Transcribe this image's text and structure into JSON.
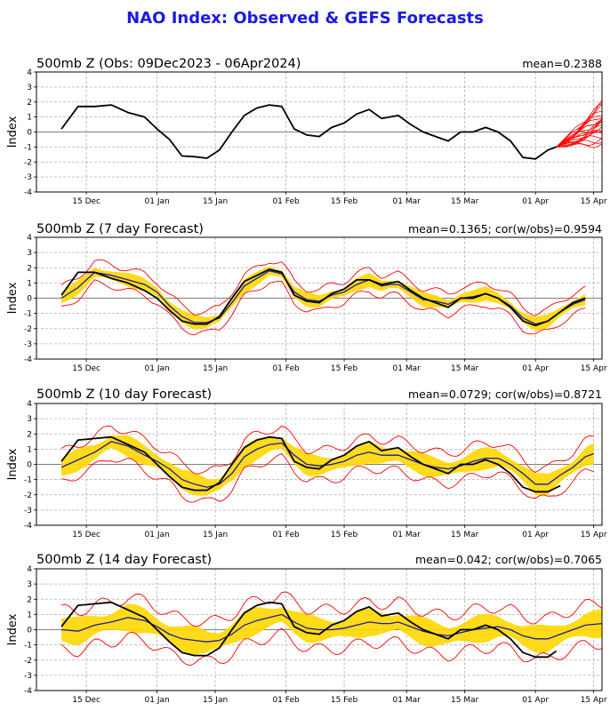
{
  "title": "NAO Index: Observed & GEFS Forecasts",
  "chart_data": [
    {
      "type": "line",
      "title": "500mb Z (Obs: 09Dec2023 - 06Apr2024)",
      "stat": "mean=0.2388",
      "ylabel": "Index",
      "ylim": [
        -4,
        4
      ],
      "yticks": [
        -4,
        -3,
        -2,
        -1,
        0,
        1,
        2,
        3,
        4
      ],
      "xlim": [
        -6,
        130
      ],
      "xticks": [
        {
          "day": 6,
          "label": "15 Dec"
        },
        {
          "day": 23,
          "label": "01 Jan"
        },
        {
          "day": 37,
          "label": "15 Jan"
        },
        {
          "day": 54,
          "label": "01 Feb"
        },
        {
          "day": 68,
          "label": "15 Feb"
        },
        {
          "day": 83,
          "label": "01 Mar"
        },
        {
          "day": 97,
          "label": "15 Mar"
        },
        {
          "day": 114,
          "label": "01 Apr"
        },
        {
          "day": 128,
          "label": "15 Apr"
        }
      ],
      "grid": true,
      "observed": {
        "day": [
          0,
          4,
          8,
          12,
          16,
          20,
          23,
          26,
          29,
          32,
          35,
          38,
          41,
          44,
          47,
          50,
          53,
          56,
          59,
          62,
          65,
          68,
          71,
          74,
          77,
          79,
          81,
          84,
          87,
          90,
          93,
          96,
          99,
          102,
          105,
          108,
          111,
          114,
          117,
          119
        ],
        "value": [
          0.2,
          1.7,
          1.7,
          1.8,
          1.3,
          1.0,
          0.2,
          -0.5,
          -1.6,
          -1.65,
          -1.75,
          -1.2,
          0.0,
          1.1,
          1.6,
          1.8,
          1.7,
          0.2,
          -0.2,
          -0.3,
          0.3,
          0.6,
          1.2,
          1.5,
          0.9,
          1.0,
          1.1,
          0.5,
          0.0,
          -0.3,
          -0.6,
          0.0,
          0.0,
          0.3,
          0.0,
          -0.6,
          -1.7,
          -1.8,
          -1.2,
          -1.0
        ]
      },
      "ensemble": {
        "start_day": 119,
        "start_value": -1.0,
        "end_day": 130,
        "end_values": [
          1.8,
          1.5,
          1.2,
          1.0,
          0.8,
          0.5,
          0.3,
          0.1,
          -0.2,
          -0.5,
          -0.8,
          1.9,
          0.6,
          -0.1,
          1.3,
          0.9,
          0.4,
          -0.6,
          1.6,
          0.0
        ]
      }
    },
    {
      "type": "line",
      "title": "500mb Z (7 day Forecast)",
      "stat": "mean=0.1365; cor(w/obs)=0.9594",
      "ylabel": "Index",
      "ylim": [
        -4,
        4
      ],
      "yticks": [
        -4,
        -3,
        -2,
        -1,
        0,
        1,
        2,
        3,
        4
      ],
      "xlim": [
        -6,
        130
      ],
      "xticks": [
        {
          "day": 6,
          "label": "15 Dec"
        },
        {
          "day": 23,
          "label": "01 Jan"
        },
        {
          "day": 37,
          "label": "15 Jan"
        },
        {
          "day": 54,
          "label": "01 Feb"
        },
        {
          "day": 68,
          "label": "15 Feb"
        },
        {
          "day": 83,
          "label": "01 Mar"
        },
        {
          "day": 97,
          "label": "15 Mar"
        },
        {
          "day": 114,
          "label": "01 Apr"
        },
        {
          "day": 128,
          "label": "15 Apr"
        }
      ],
      "grid": true,
      "observed": {
        "day": [
          0,
          4,
          8,
          12,
          16,
          20,
          23,
          26,
          29,
          32,
          35,
          38,
          41,
          44,
          47,
          50,
          53,
          56,
          59,
          62,
          65,
          68,
          71,
          74,
          77,
          79,
          81,
          84,
          87,
          90,
          93,
          96,
          99,
          102,
          105,
          108,
          111,
          114,
          117,
          120,
          123,
          126
        ],
        "value": [
          0.2,
          1.7,
          1.7,
          1.3,
          1.0,
          0.5,
          0.0,
          -0.8,
          -1.5,
          -1.7,
          -1.7,
          -1.2,
          0.0,
          1.1,
          1.5,
          1.9,
          1.7,
          0.2,
          -0.2,
          -0.3,
          0.3,
          0.6,
          1.2,
          1.2,
          0.9,
          1.0,
          1.1,
          0.5,
          0.0,
          -0.3,
          -0.6,
          0.0,
          0.0,
          0.3,
          0.0,
          -0.6,
          -1.5,
          -1.8,
          -1.5,
          -0.9,
          -0.3,
          0.0
        ]
      },
      "forecast_mean": {
        "day": [
          0,
          4,
          8,
          12,
          16,
          20,
          23,
          26,
          29,
          32,
          35,
          38,
          41,
          44,
          47,
          50,
          53,
          56,
          59,
          62,
          65,
          68,
          71,
          74,
          77,
          79,
          81,
          84,
          87,
          90,
          93,
          96,
          99,
          102,
          105,
          108,
          111,
          114,
          117,
          120,
          123,
          126
        ],
        "value": [
          0.0,
          0.7,
          1.7,
          1.5,
          1.2,
          0.9,
          0.4,
          -0.5,
          -1.2,
          -1.6,
          -1.6,
          -1.3,
          -0.3,
          0.8,
          1.3,
          1.8,
          1.6,
          0.4,
          -0.1,
          -0.2,
          0.2,
          0.4,
          0.9,
          1.2,
          0.8,
          0.9,
          0.9,
          0.4,
          -0.1,
          -0.2,
          -0.4,
          0.0,
          0.1,
          0.3,
          0.0,
          -0.5,
          -1.3,
          -1.7,
          -1.5,
          -0.9,
          -0.4,
          -0.1
        ]
      },
      "band_halfwidth": 0.35,
      "envelope_halfwidth": 0.7
    },
    {
      "type": "line",
      "title": "500mb Z (10 day Forecast)",
      "stat": "mean=0.0729; cor(w/obs)=0.8721",
      "ylabel": "Index",
      "ylim": [
        -4,
        4
      ],
      "yticks": [
        -4,
        -3,
        -2,
        -1,
        0,
        1,
        2,
        3,
        4
      ],
      "xlim": [
        -6,
        130
      ],
      "xticks": [
        {
          "day": 6,
          "label": "15 Dec"
        },
        {
          "day": 23,
          "label": "01 Jan"
        },
        {
          "day": 37,
          "label": "15 Jan"
        },
        {
          "day": 54,
          "label": "01 Feb"
        },
        {
          "day": 68,
          "label": "15 Feb"
        },
        {
          "day": 83,
          "label": "01 Mar"
        },
        {
          "day": 97,
          "label": "15 Mar"
        },
        {
          "day": 114,
          "label": "01 Apr"
        },
        {
          "day": 128,
          "label": "15 Apr"
        }
      ],
      "grid": true,
      "observed": {
        "day": [
          0,
          4,
          8,
          12,
          16,
          20,
          23,
          26,
          29,
          32,
          35,
          38,
          41,
          44,
          47,
          50,
          53,
          56,
          59,
          62,
          65,
          68,
          71,
          74,
          77,
          79,
          81,
          84,
          87,
          90,
          93,
          96,
          99,
          102,
          105,
          108,
          111,
          114,
          117,
          120
        ],
        "value": [
          0.2,
          1.6,
          1.7,
          1.8,
          1.3,
          0.8,
          0.0,
          -0.8,
          -1.5,
          -1.7,
          -1.7,
          -1.2,
          0.0,
          1.1,
          1.6,
          1.8,
          1.7,
          0.2,
          -0.2,
          -0.3,
          0.3,
          0.6,
          1.2,
          1.5,
          0.9,
          1.0,
          1.1,
          0.5,
          0.0,
          -0.3,
          -0.6,
          0.0,
          0.0,
          0.3,
          0.0,
          -0.6,
          -1.5,
          -1.8,
          -1.8,
          -1.4
        ]
      },
      "forecast_mean": {
        "day": [
          0,
          4,
          8,
          12,
          16,
          20,
          23,
          26,
          29,
          32,
          35,
          38,
          41,
          44,
          47,
          50,
          53,
          56,
          59,
          62,
          65,
          68,
          71,
          74,
          77,
          79,
          81,
          84,
          87,
          90,
          93,
          96,
          99,
          102,
          105,
          108,
          111,
          114,
          117,
          120,
          123,
          126,
          128
        ],
        "value": [
          -0.2,
          0.3,
          0.8,
          1.5,
          1.2,
          0.6,
          0.2,
          -0.3,
          -1.0,
          -1.3,
          -1.5,
          -1.3,
          -0.6,
          0.5,
          1.0,
          1.3,
          1.4,
          0.6,
          0.0,
          -0.1,
          0.0,
          0.2,
          0.6,
          0.8,
          0.6,
          0.6,
          0.6,
          0.3,
          0.0,
          -0.2,
          -0.3,
          -0.1,
          0.2,
          0.4,
          0.4,
          0.0,
          -0.6,
          -1.3,
          -1.3,
          -0.7,
          -0.2,
          0.5,
          0.7
        ]
      },
      "band_halfwidth": 0.55,
      "envelope_halfwidth": 1.0
    },
    {
      "type": "line",
      "title": "500mb Z (14 day Forecast)",
      "stat": "mean=0.042; cor(w/obs)=0.7065",
      "ylabel": "Index",
      "ylim": [
        -4,
        4
      ],
      "yticks": [
        -4,
        -3,
        -2,
        -1,
        0,
        1,
        2,
        3,
        4
      ],
      "xlim": [
        -6,
        130
      ],
      "xticks": [
        {
          "day": 6,
          "label": "15 Dec"
        },
        {
          "day": 23,
          "label": "01 Jan"
        },
        {
          "day": 37,
          "label": "15 Jan"
        },
        {
          "day": 54,
          "label": "01 Feb"
        },
        {
          "day": 68,
          "label": "15 Feb"
        },
        {
          "day": 83,
          "label": "01 Mar"
        },
        {
          "day": 97,
          "label": "15 Mar"
        },
        {
          "day": 114,
          "label": "01 Apr"
        },
        {
          "day": 128,
          "label": "15 Apr"
        }
      ],
      "grid": true,
      "observed": {
        "day": [
          0,
          4,
          8,
          12,
          16,
          20,
          23,
          26,
          29,
          32,
          35,
          38,
          41,
          44,
          47,
          50,
          53,
          56,
          59,
          62,
          65,
          68,
          71,
          74,
          77,
          79,
          81,
          84,
          87,
          90,
          93,
          96,
          99,
          102,
          105,
          108,
          111,
          114,
          117,
          119
        ],
        "value": [
          0.2,
          1.6,
          1.7,
          1.8,
          1.3,
          0.8,
          0.0,
          -0.8,
          -1.5,
          -1.7,
          -1.7,
          -1.2,
          0.0,
          1.1,
          1.6,
          1.8,
          1.7,
          0.2,
          -0.2,
          -0.3,
          0.3,
          0.6,
          1.2,
          1.5,
          0.9,
          1.0,
          1.1,
          0.5,
          0.0,
          -0.3,
          -0.6,
          0.0,
          0.0,
          0.3,
          0.0,
          -0.6,
          -1.5,
          -1.8,
          -1.8,
          -1.4
        ]
      },
      "forecast_mean": {
        "day": [
          0,
          4,
          8,
          12,
          16,
          20,
          23,
          26,
          29,
          32,
          35,
          38,
          41,
          44,
          47,
          50,
          53,
          56,
          59,
          62,
          65,
          68,
          71,
          74,
          77,
          79,
          81,
          84,
          87,
          90,
          93,
          96,
          99,
          102,
          105,
          108,
          111,
          114,
          117,
          120,
          123,
          126,
          130
        ],
        "value": [
          0.0,
          -0.1,
          0.3,
          0.5,
          0.8,
          0.6,
          0.2,
          -0.3,
          -0.6,
          -0.7,
          -0.8,
          -0.7,
          -0.3,
          0.3,
          0.6,
          0.8,
          1.0,
          0.5,
          0.1,
          0.0,
          0.0,
          0.1,
          0.3,
          0.5,
          0.4,
          0.4,
          0.5,
          0.2,
          -0.1,
          -0.3,
          -0.4,
          -0.2,
          0.0,
          0.1,
          0.2,
          0.0,
          -0.4,
          -0.6,
          -0.6,
          -0.3,
          0.0,
          0.3,
          0.4
        ]
      },
      "band_halfwidth": 0.7,
      "envelope_halfwidth": 1.3
    }
  ],
  "colors": {
    "title": "#1a1ae6",
    "observed": "#000000",
    "ensemble": "#ff0000",
    "band": "#ffd700",
    "mean": "#1a1aa0",
    "grid": "#b0b0b0",
    "zero": "#808080"
  }
}
